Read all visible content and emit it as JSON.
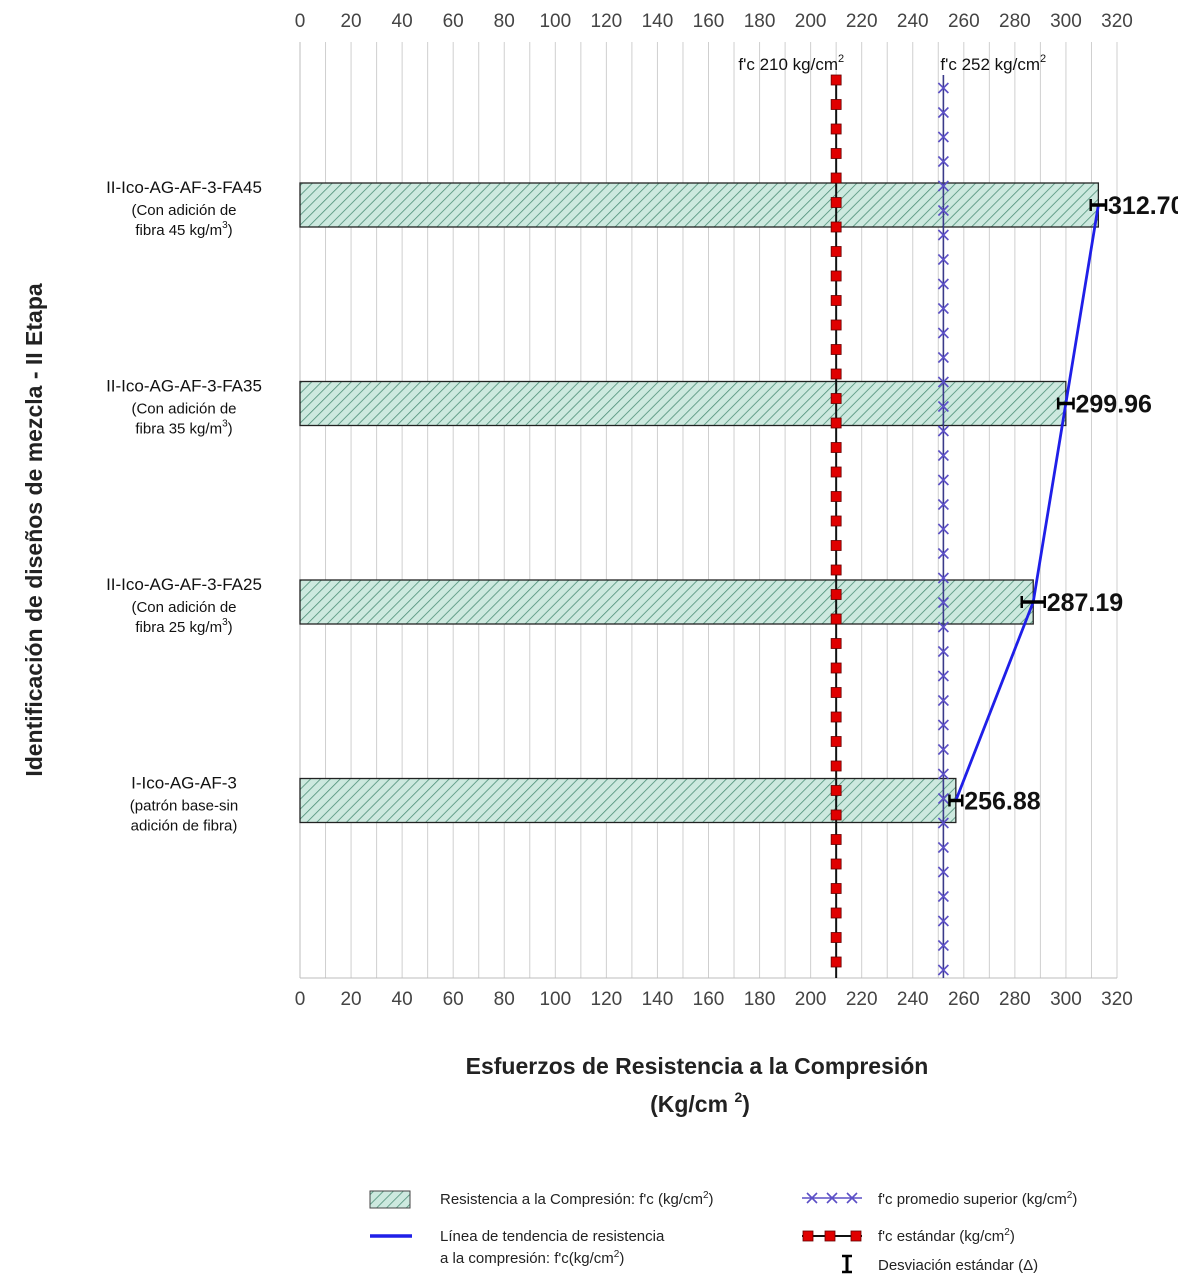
{
  "chart_data": {
    "type": "bar",
    "orientation": "horizontal",
    "categories": [
      {
        "name": "I-Ico-AG-AF-3",
        "detail_1": "(patrón base-sin",
        "detail_2": "adición de fibra)",
        "unit_sup": ""
      },
      {
        "name": "II-Ico-AG-AF-3-FA25",
        "detail_1": "(Con adición de",
        "detail_2": "fibra 25 kg/m",
        "unit_sup": "3",
        "detail_2_end": ")"
      },
      {
        "name": "II-Ico-AG-AF-3-FA35",
        "detail_1": "(Con adición de",
        "detail_2": "fibra 35 kg/m",
        "unit_sup": "3",
        "detail_2_end": ")"
      },
      {
        "name": "II-Ico-AG-AF-3-FA45",
        "detail_1": "(Con adición de",
        "detail_2": "fibra 45 kg/m",
        "unit_sup": "3",
        "detail_2_end": ")"
      }
    ],
    "values": [
      256.88,
      287.19,
      299.96,
      312.7
    ],
    "value_labels": [
      "256.88",
      "287.19",
      "299.96",
      "312.70"
    ],
    "std_dev": [
      2.5,
      4.5,
      3.0,
      3.0
    ],
    "xlim": [
      0,
      320
    ],
    "x_ticks": [
      0,
      20,
      40,
      60,
      80,
      100,
      120,
      140,
      160,
      180,
      200,
      220,
      240,
      260,
      280,
      300,
      320
    ],
    "x_ticks_repeated_top": true,
    "reference_lines": [
      {
        "value": 210,
        "label": "f'c 210 kg/cm",
        "label_sup": "2",
        "style": "red-square-markers",
        "color": "#e00000"
      },
      {
        "value": 252,
        "label": "f'c 252 kg/cm",
        "label_sup": "2",
        "style": "purple-x-markers",
        "color": "#5b4fc6"
      }
    ],
    "trend_line": {
      "color": "#1f1fe8"
    },
    "bar_fill": "#cde9df",
    "bar_hatch_color": "#4d8f78",
    "grid": true,
    "ylabel": "Identificación de diseños de mezcla - II Etapa",
    "xlabel_line1": "Esfuerzos de Resistencia a la Compresión",
    "xlabel_line2_pre": "(Kg/cm ",
    "xlabel_line2_sup": "2",
    "xlabel_line2_post": ")",
    "legend": {
      "placement": "bottom",
      "items": [
        {
          "icon": "hatched-bar-icon",
          "text": "Resistencia a la Compresión:  f'c (kg/cm",
          "sup": "2",
          "end": ")"
        },
        {
          "icon": "blue-line-icon",
          "text": "Línea de tendencia de resistencia",
          "text2": "a la compresión: f'c(kg/cm",
          "sup": "2",
          "end": ")"
        },
        {
          "icon": "purple-x-line-icon",
          "text": "f'c promedio superior (kg/cm",
          "sup": "2",
          "end": ")"
        },
        {
          "icon": "red-square-line-icon",
          "text": "f'c estándar (kg/cm",
          "sup": "2",
          "end": ")"
        },
        {
          "icon": "error-bar-icon",
          "text": "Desviación estándar (Δ)"
        }
      ]
    }
  }
}
